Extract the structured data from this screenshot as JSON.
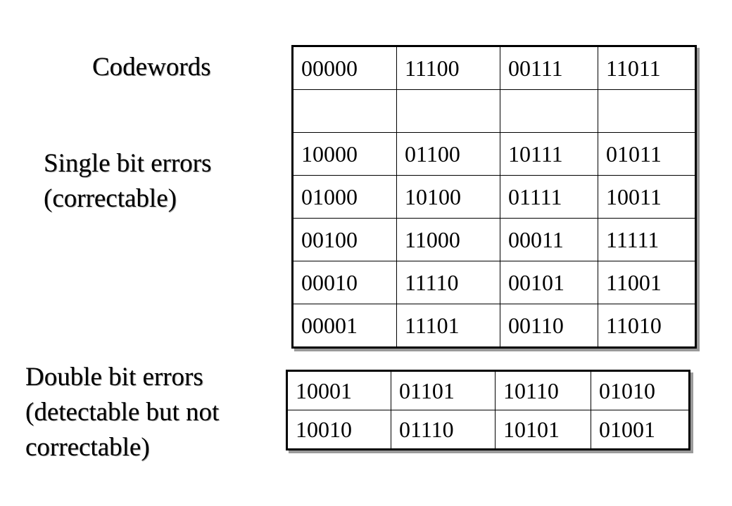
{
  "labels": {
    "codewords": "Codewords",
    "single_line1": "Single bit errors",
    "single_line2": "(correctable)",
    "double_line1": "Double bit errors",
    "double_line2": "(detectable but not",
    "double_line3": "correctable)"
  },
  "main_table": {
    "rows": [
      [
        "00000",
        "11100",
        "00111",
        "11011"
      ],
      [
        "",
        "",
        "",
        ""
      ],
      [
        "10000",
        "01100",
        "10111",
        "01011"
      ],
      [
        "01000",
        "10100",
        "01111",
        "10011"
      ],
      [
        "00100",
        "11000",
        "00011",
        "11111"
      ],
      [
        "00010",
        "11110",
        "00101",
        "11001"
      ],
      [
        "00001",
        "11101",
        "00110",
        "11010"
      ]
    ]
  },
  "double_table": {
    "rows": [
      [
        "10001",
        "01101",
        "10110",
        "01010"
      ],
      [
        "10010",
        "01110",
        "10101",
        "01001"
      ]
    ]
  }
}
